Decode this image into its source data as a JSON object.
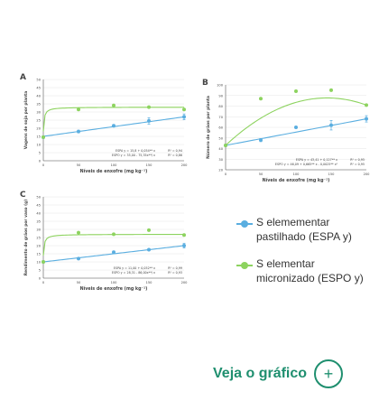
{
  "colors": {
    "espa": "#5aaee0",
    "espo": "#8dd35f",
    "axis": "#555555",
    "grid": "#e6e6e6"
  },
  "chart_data": [
    {
      "id": "A",
      "type": "scatter",
      "panel_label": "A",
      "xlabel": "Níveis de enxofre (mg kg⁻¹)",
      "ylabel": "Vagens de soja por planta",
      "xlim": [
        0,
        200
      ],
      "ylim": [
        0,
        50
      ],
      "xticks": [
        0,
        50,
        100,
        150,
        200
      ],
      "yticks": [
        0,
        5,
        10,
        15,
        20,
        25,
        30,
        35,
        40,
        45,
        50
      ],
      "series": [
        {
          "key": "espa",
          "x": [
            0,
            50,
            100,
            150,
            200
          ],
          "y": [
            14.5,
            18,
            21.5,
            24.5,
            27
          ],
          "err": [
            0.8,
            0.8,
            0.8,
            2,
            1.8
          ],
          "fit": "linear",
          "a": 15.0,
          "b": 0.06
        },
        {
          "key": "espo",
          "x": [
            0,
            50,
            100,
            150,
            200
          ],
          "y": [
            14.5,
            31.5,
            34,
            33,
            31.5
          ],
          "err": [
            0,
            0,
            0,
            0,
            0
          ],
          "fit": "rational",
          "a": 33.0,
          "b": 18.0,
          "c": 1.2
        }
      ],
      "equations": [
        {
          "text": "ESPA y = 15,8 + 0,054** x",
          "r2": "R² = 0,94"
        },
        {
          "text": "ESPO y = 35,00 - 75,35x**/ x",
          "r2": "R² = 0,86"
        }
      ]
    },
    {
      "id": "B",
      "type": "scatter",
      "panel_label": "B",
      "xlabel": "Níveis de enxofre (mg kg⁻¹)",
      "ylabel": "Número de grãos por planta",
      "xlim": [
        0,
        200
      ],
      "ylim": [
        20,
        100
      ],
      "xticks": [
        0,
        50,
        100,
        150,
        200
      ],
      "yticks": [
        20,
        30,
        40,
        50,
        60,
        70,
        80,
        90,
        100
      ],
      "series": [
        {
          "key": "espa",
          "x": [
            0,
            50,
            100,
            150,
            200
          ],
          "y": [
            43,
            48,
            60,
            62,
            68
          ],
          "err": [
            0.5,
            1.5,
            0.8,
            4.5,
            3
          ],
          "fit": "linear",
          "a": 43.0,
          "b": 0.125
        },
        {
          "key": "espo",
          "x": [
            0,
            50,
            100,
            150,
            200
          ],
          "y": [
            43,
            87,
            94,
            95,
            81
          ],
          "err": [
            0,
            0,
            0,
            0,
            0
          ],
          "fit": "quadratic",
          "a": 43.0,
          "b": 0.62,
          "c": -0.00215
        }
      ],
      "equations": [
        {
          "text": "ESPA y = 43,41 + 0,127** x",
          "r2": "R² = 0,95"
        },
        {
          "text": "ESPO y = 46,09 + 0,665** x - 0,0025** x²",
          "r2": "R² = 0,95"
        }
      ]
    },
    {
      "id": "C",
      "type": "scatter",
      "panel_label": "C",
      "xlabel": "Níveis de enxofre (mg kg⁻¹)",
      "ylabel": "Rendimento de grãos por vaso (g)",
      "xlim": [
        0,
        200
      ],
      "ylim": [
        0,
        50
      ],
      "xticks": [
        0,
        50,
        100,
        150,
        200
      ],
      "yticks": [
        0,
        5,
        10,
        15,
        20,
        25,
        30,
        35,
        40,
        45,
        50
      ],
      "series": [
        {
          "key": "espa",
          "x": [
            0,
            50,
            100,
            150,
            200
          ],
          "y": [
            10,
            12,
            16,
            17.5,
            20
          ],
          "err": [
            0.4,
            0.4,
            0.6,
            0.6,
            1.5
          ],
          "fit": "linear",
          "a": 10.0,
          "b": 0.05
        },
        {
          "key": "espo",
          "x": [
            0,
            50,
            100,
            150,
            200
          ],
          "y": [
            10,
            28,
            27,
            29.5,
            26.5
          ],
          "err": [
            0,
            0,
            0,
            0,
            0
          ],
          "fit": "rational",
          "a": 27.0,
          "b": 17.0,
          "c": 1.3
        }
      ],
      "equations": [
        {
          "text": "ESPA y = 11,00 + 0,052** x",
          "r2": "R² = 0,99"
        },
        {
          "text": "ESPO y = 28,31 - 86,00x**/ x",
          "r2": "R² = 0,93"
        }
      ]
    }
  ],
  "legend": {
    "items": [
      {
        "key": "espa",
        "label": "S elemementar pastilhado (ESPA y)"
      },
      {
        "key": "espo",
        "label": "S elementar micronizado (ESPO y)"
      }
    ]
  },
  "cta": {
    "label": "Veja o gráfico",
    "icon": "plus-icon"
  }
}
